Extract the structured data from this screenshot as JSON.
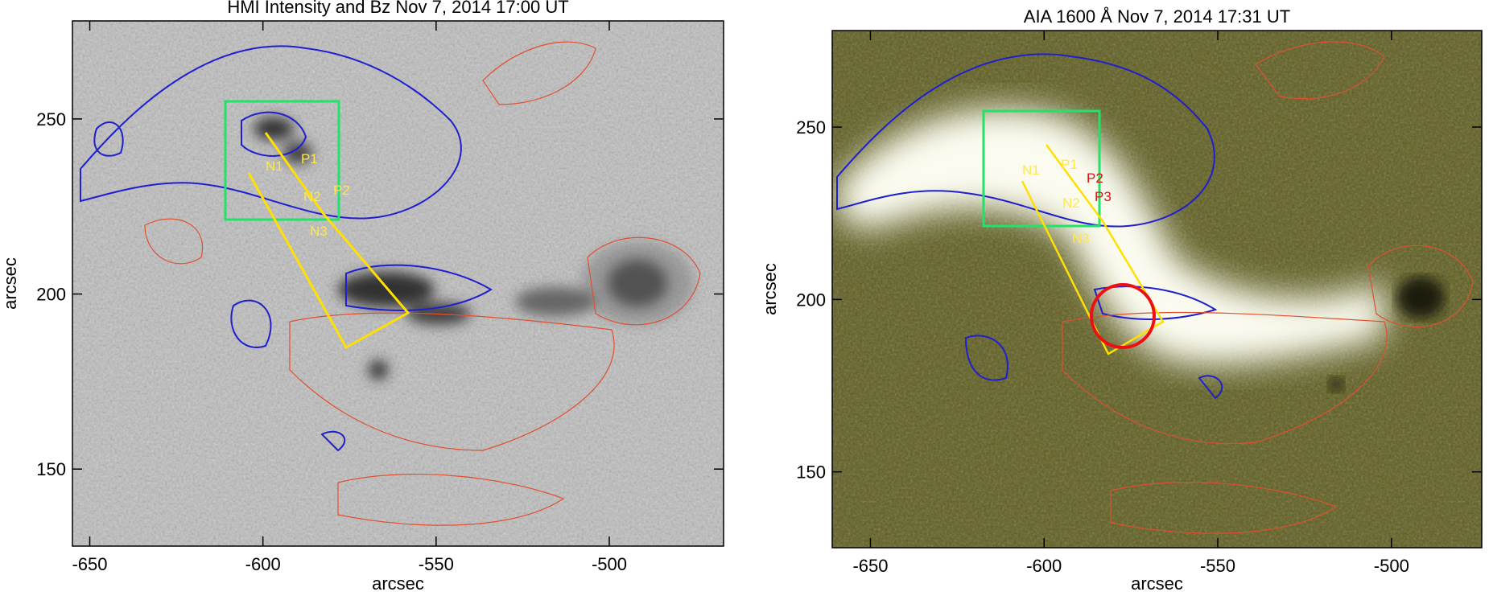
{
  "chart_data": [
    {
      "type": "image",
      "title": "HMI Intensity and Bz Nov 7, 2014 17:00 UT",
      "xlabel": "arcsec",
      "ylabel": "arcsec",
      "xlim": [
        -655,
        -467
      ],
      "ylim": [
        128,
        278
      ],
      "xticks": [
        -650,
        -600,
        -550,
        -500
      ],
      "yticks": [
        150,
        200,
        250
      ],
      "annotations": [
        "N1",
        "P1",
        "N2",
        "P2",
        "N3"
      ]
    },
    {
      "type": "image",
      "title": "AIA 1600 Å  Nov 7, 2014 17:31 UT",
      "xlabel": "arcsec",
      "ylabel": "arcsec",
      "xlim": [
        -661,
        -474
      ],
      "ylim": [
        128,
        278
      ],
      "xticks": [
        -650,
        -600,
        -550,
        -500
      ],
      "yticks": [
        150,
        200,
        250
      ],
      "annotations": [
        "N1",
        "P1",
        "P2",
        "P3",
        "N2",
        "N3"
      ]
    }
  ]
}
